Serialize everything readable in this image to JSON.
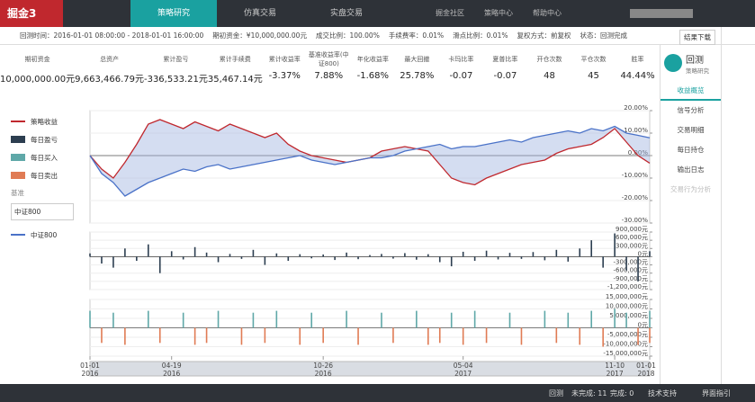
{
  "nav": {
    "logo": "掘金3",
    "tabs": [
      "策略研究",
      "仿真交易",
      "实盘交易"
    ],
    "links": [
      "掘金社区",
      "策略中心",
      "帮助中心"
    ]
  },
  "info_bar": [
    "回测时间：2016-01-01 08:00:00 - 2018-01-01 16:00:00",
    "期初资金：¥10,000,000.00元",
    "成交比例：100.00%",
    "手续费率：0.01%",
    "滑点比例：0.01%",
    "复权方式：前复权",
    "状态：回测完成"
  ],
  "download": "结果下载",
  "stats": [
    {
      "label": "期初资金",
      "value": "10,000,000.00元"
    },
    {
      "label": "总资产",
      "value": "9,663,466.79元"
    },
    {
      "label": "累计盈亏",
      "value": "-336,533.21元"
    },
    {
      "label": "累计手续费",
      "value": "35,467.14元"
    },
    {
      "label": "累计收益率",
      "value": "-3.37%"
    },
    {
      "label": "基准收益率(中证800)",
      "value": "7.88%"
    },
    {
      "label": "年化收益率",
      "value": "-1.68%"
    },
    {
      "label": "最大回撤",
      "value": "25.78%"
    },
    {
      "label": "卡玛比率",
      "value": "-0.07"
    },
    {
      "label": "夏普比率",
      "value": "-0.07"
    },
    {
      "label": "开仓次数",
      "value": "48"
    },
    {
      "label": "平仓次数",
      "value": "45"
    },
    {
      "label": "胜率",
      "value": "44.44%"
    }
  ],
  "sidebar": {
    "title": "回测",
    "subtitle": "策略研究",
    "items": [
      "收益概览",
      "信号分析",
      "交易明细",
      "每日持仓",
      "输出日志",
      "交易行为分析"
    ]
  },
  "legend": {
    "items": [
      "策略收益",
      "每日盈亏",
      "每日买入",
      "每日卖出"
    ],
    "benchmark_label": "基准",
    "benchmark_input": "中证800",
    "benchmark_item": "中证800"
  },
  "status_bar": {
    "label": "回测",
    "pending": "未完成: 11",
    "done": "完成: 0",
    "support": "技术支持",
    "guide": "界面指引"
  },
  "chart_data": [
    {
      "type": "line",
      "categories": [
        "01-01 2016",
        null,
        null,
        null,
        null,
        null,
        null,
        "04-19 2016",
        null,
        null,
        null,
        null,
        null,
        null,
        null,
        null,
        null,
        null,
        null,
        null,
        "10-26 2016",
        null,
        null,
        null,
        null,
        null,
        null,
        null,
        null,
        null,
        null,
        null,
        "05-04 2017",
        null,
        null,
        null,
        null,
        null,
        null,
        null,
        null,
        null,
        null,
        null,
        null,
        "11-10 2017",
        null,
        null,
        "01-01 2018"
      ],
      "series": [
        {
          "name": "策略收益",
          "color": "#c0282e",
          "values": [
            0,
            -6,
            -10,
            -3,
            5,
            14,
            16,
            14,
            12,
            15,
            13,
            11,
            14,
            12,
            10,
            8,
            10,
            5,
            2,
            0,
            -1,
            -2,
            -3,
            -2,
            -1,
            2,
            3,
            4,
            3,
            2,
            -4,
            -10,
            -12,
            -13,
            -10,
            -8,
            -6,
            -4,
            -3,
            -2,
            1,
            3,
            4,
            5,
            8,
            12,
            6,
            0,
            -3.37
          ]
        },
        {
          "name": "中证800",
          "color": "#4a72c8",
          "values": [
            0,
            -8,
            -12,
            -18,
            -15,
            -12,
            -10,
            -8,
            -6,
            -7,
            -5,
            -4,
            -6,
            -5,
            -4,
            -3,
            -2,
            -1,
            0,
            -2,
            -3,
            -4,
            -3,
            -2,
            -1,
            -1,
            0,
            2,
            3,
            4,
            5,
            3,
            4,
            4,
            5,
            6,
            7,
            6,
            8,
            9,
            10,
            11,
            10,
            12,
            11,
            13,
            10,
            9,
            7.88
          ]
        }
      ],
      "ylim": [
        -30,
        20
      ],
      "yticks": [
        {
          "value": 20,
          "label": "20.00%"
        },
        {
          "value": 10,
          "label": "10.00%"
        },
        {
          "value": 0,
          "label": "0.00%"
        },
        {
          "value": -10,
          "label": "-10.00%"
        },
        {
          "value": -20,
          "label": "-20.00%"
        },
        {
          "value": -30,
          "label": "-30.00%"
        }
      ]
    },
    {
      "type": "bar",
      "series": [
        {
          "name": "每日盈亏",
          "color": "#2c3e50",
          "values": [
            120000,
            -250000,
            -400000,
            300000,
            -150000,
            450000,
            -600000,
            200000,
            -100000,
            350000,
            150000,
            -200000,
            100000,
            -80000,
            250000,
            -300000,
            120000,
            -150000,
            90000,
            -60000,
            80000,
            -120000,
            150000,
            -90000,
            60000,
            100000,
            -70000,
            130000,
            -110000,
            90000,
            -200000,
            -350000,
            180000,
            -150000,
            220000,
            -100000,
            140000,
            -80000,
            170000,
            -130000,
            250000,
            -180000,
            300000,
            600000,
            -400000,
            850000,
            -500000,
            -900000,
            200000
          ]
        }
      ],
      "ylim": [
        -1200000,
        900000
      ],
      "yticks": [
        {
          "value": 900000,
          "label": "900,000元"
        },
        {
          "value": 600000,
          "label": "600,000元"
        },
        {
          "value": 300000,
          "label": "300,000元"
        },
        {
          "value": 0,
          "label": "0元"
        },
        {
          "value": -300000,
          "label": "-300,000元"
        },
        {
          "value": -600000,
          "label": "-600,000元"
        },
        {
          "value": -900000,
          "label": "-900,000元"
        },
        {
          "value": -1200000,
          "label": "-1,200,000元"
        }
      ]
    },
    {
      "type": "bar",
      "series": [
        {
          "name": "每日买入",
          "color": "#5fa8a8",
          "values": [
            9000000,
            0,
            8000000,
            0,
            0,
            9000000,
            0,
            0,
            8000000,
            0,
            0,
            9000000,
            0,
            0,
            8000000,
            0,
            9000000,
            0,
            0,
            8000000,
            0,
            0,
            9000000,
            0,
            0,
            8000000,
            0,
            0,
            9000000,
            0,
            0,
            8000000,
            0,
            9000000,
            0,
            0,
            8000000,
            0,
            0,
            9000000,
            0,
            8000000,
            0,
            9000000,
            0,
            10000000,
            8000000,
            0,
            9000000
          ]
        },
        {
          "name": "每日卖出",
          "color": "#e07b54",
          "values": [
            0,
            -8000000,
            0,
            -9000000,
            0,
            0,
            -8000000,
            0,
            0,
            -9000000,
            -8000000,
            0,
            0,
            -9000000,
            0,
            -8000000,
            0,
            0,
            -9000000,
            0,
            -8000000,
            0,
            0,
            -9000000,
            0,
            0,
            -8000000,
            0,
            0,
            -9000000,
            -8000000,
            0,
            -9000000,
            0,
            -8000000,
            0,
            0,
            -9000000,
            0,
            0,
            -8000000,
            0,
            -9000000,
            0,
            -10000000,
            0,
            0,
            -9000000,
            -8000000
          ]
        }
      ],
      "ylim": [
        -15000000,
        15000000
      ],
      "yticks": [
        {
          "value": 15000000,
          "label": "15,000,000元"
        },
        {
          "value": 10000000,
          "label": "10,000,000元"
        },
        {
          "value": 5000000,
          "label": "5,000,000元"
        },
        {
          "value": 0,
          "label": "0元"
        },
        {
          "value": -5000000,
          "label": "-5,000,000元"
        },
        {
          "value": -10000000,
          "label": "-10,000,000元"
        },
        {
          "value": -15000000,
          "label": "-15,000,000元"
        }
      ]
    }
  ]
}
